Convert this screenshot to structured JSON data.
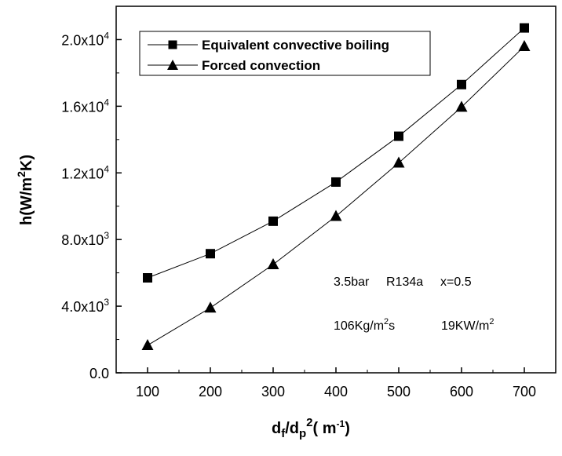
{
  "chart_data": {
    "type": "line",
    "ylabel": {
      "pre": "h(W/m",
      "sup": "2",
      "post": "K)"
    },
    "xlabel": {
      "d": "d",
      "sub1": "f",
      "mid": "/d",
      "sub2": "p",
      "sup": "2",
      "unit_open": "( m",
      "unit_sup": "-1",
      "unit_close": ")"
    },
    "xlim": [
      50,
      750
    ],
    "ylim": [
      0,
      22000
    ],
    "x_ticks": [
      100,
      200,
      300,
      400,
      500,
      600,
      700
    ],
    "x_tick_labels": [
      "100",
      "200",
      "300",
      "400",
      "500",
      "600",
      "700"
    ],
    "y_ticks": [
      0,
      4000,
      8000,
      12000,
      16000,
      20000
    ],
    "y_tick_labels": [
      {
        "base": "0.0",
        "exp": ""
      },
      {
        "base": "4.0x10",
        "exp": "3"
      },
      {
        "base": "8.0x10",
        "exp": "3"
      },
      {
        "base": "1.2x10",
        "exp": "4"
      },
      {
        "base": "1.6x10",
        "exp": "4"
      },
      {
        "base": "2.0x10",
        "exp": "4"
      }
    ],
    "x": [
      100,
      200,
      300,
      400,
      500,
      600,
      700
    ],
    "series": [
      {
        "name": "Equivalent convective boiling",
        "marker": "square",
        "values": [
          5700,
          7150,
          9100,
          11450,
          14200,
          17300,
          20700
        ]
      },
      {
        "name": "Forced convection",
        "marker": "triangle",
        "values": [
          1650,
          3900,
          6500,
          9400,
          12600,
          15950,
          19600
        ]
      }
    ],
    "legend_position": "top-left",
    "annotations": {
      "line1": {
        "a": "3.5bar",
        "b": "R134a",
        "c": "x=0.5"
      },
      "line2": {
        "a_pre": "106Kg/m",
        "a_sup": "2",
        "a_post": "s",
        "b_pre": "19KW/m",
        "b_sup": "2"
      }
    },
    "colors": {
      "line": "#000000",
      "marker": "#000000"
    }
  }
}
